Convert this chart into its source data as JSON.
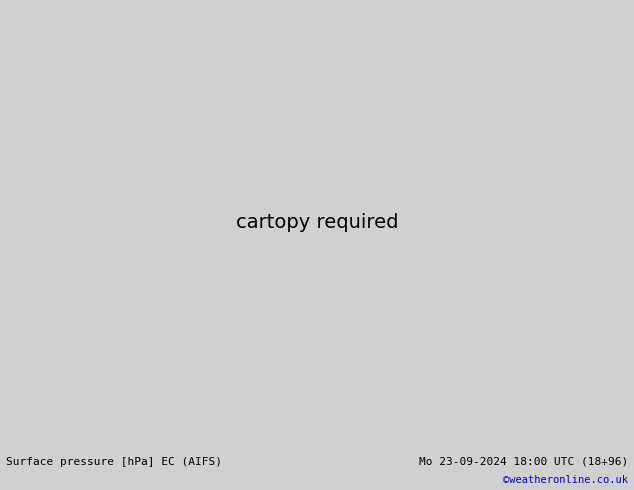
{
  "label_left": "Surface pressure [hPa] EC (AIFS)",
  "label_right": "Mo 23-09-2024 18:00 UTC (18+96)",
  "copyright": "©weatheronline.co.uk",
  "copyright_color": "#0000cc",
  "lon_min": 88,
  "lon_max": 175,
  "lat_min": -12,
  "lat_max": 52,
  "land_color": "#c8ecb0",
  "sea_color": "#e8e8e8",
  "coast_color": "#808080",
  "footer_color": "#d0d0d0",
  "text_color": "#000000"
}
